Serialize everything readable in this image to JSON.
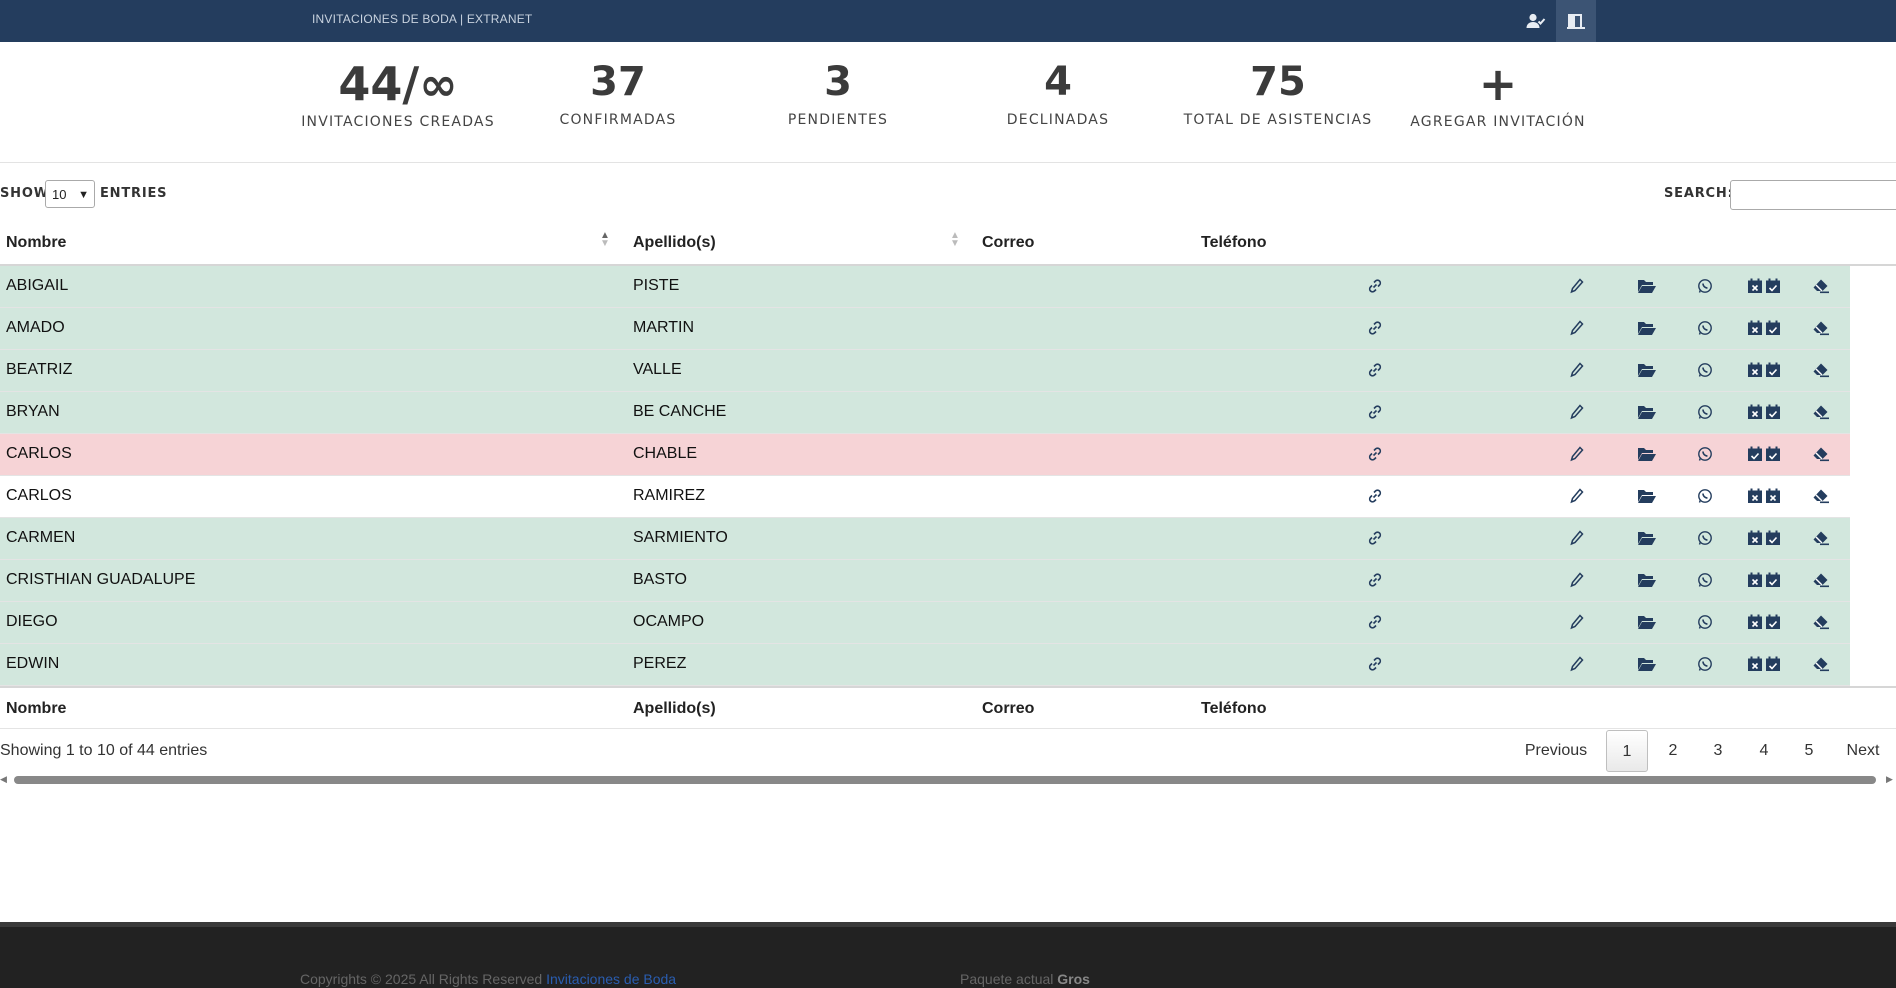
{
  "header": {
    "brand": "INVITACIONES DE BODA | EXTRANET",
    "user_icon": "user-check-icon",
    "exit_icon": "door-exit-icon"
  },
  "stats": [
    {
      "value": "44/∞",
      "label": "INVITACIONES CREADAS"
    },
    {
      "value": "37",
      "label": "CONFIRMADAS"
    },
    {
      "value": "3",
      "label": "PENDIENTES"
    },
    {
      "value": "4",
      "label": "DECLINADAS"
    },
    {
      "value": "75",
      "label": "TOTAL DE ASISTENCIAS"
    },
    {
      "value": "+",
      "label": "AGREGAR INVITACIÓN"
    }
  ],
  "controls": {
    "show": "SHOW",
    "length": "10",
    "entries": "ENTRIES",
    "search_label": "SEARCH:",
    "search_value": ""
  },
  "columns": [
    "Nombre",
    "Apellido(s)",
    "Correo",
    "Teléfono"
  ],
  "rows": [
    {
      "nombre": "ABIGAIL",
      "apellido": "PISTE",
      "correo": "",
      "telefono": "",
      "status": "confirmed"
    },
    {
      "nombre": "AMADO",
      "apellido": "MARTIN",
      "correo": "",
      "telefono": "",
      "status": "confirmed"
    },
    {
      "nombre": "BEATRIZ",
      "apellido": "VALLE",
      "correo": "",
      "telefono": "",
      "status": "confirmed"
    },
    {
      "nombre": "BRYAN",
      "apellido": "BE CANCHE",
      "correo": "",
      "telefono": "",
      "status": "confirmed"
    },
    {
      "nombre": "CARLOS",
      "apellido": "CHABLE",
      "correo": "",
      "telefono": "",
      "status": "declined"
    },
    {
      "nombre": "CARLOS",
      "apellido": "RAMIREZ",
      "correo": "",
      "telefono": "",
      "status": "pending"
    },
    {
      "nombre": "CARMEN",
      "apellido": "SARMIENTO",
      "correo": "",
      "telefono": "",
      "status": "confirmed"
    },
    {
      "nombre": "CRISTHIAN GUADALUPE",
      "apellido": "BASTO",
      "correo": "",
      "telefono": "",
      "status": "confirmed"
    },
    {
      "nombre": "DIEGO",
      "apellido": "OCAMPO",
      "correo": "",
      "telefono": "",
      "status": "confirmed"
    },
    {
      "nombre": "EDWIN",
      "apellido": "PEREZ",
      "correo": "",
      "telefono": "",
      "status": "confirmed"
    }
  ],
  "row_icons": [
    "link-icon",
    "pencil-icon",
    "folder-open-icon",
    "whatsapp-icon",
    "calendar-x-icon",
    "calendar-check-icon",
    "eraser-icon"
  ],
  "info": "Showing 1 to 10 of 44 entries",
  "pagination": {
    "previous": "Previous",
    "pages": [
      "1",
      "2",
      "3",
      "4",
      "5"
    ],
    "current": "1",
    "next": "Next"
  },
  "footer": {
    "copyright": "Copyrights © 2025 All Rights Reserved",
    "copyright_link": "Invitaciones de Boda",
    "package_label": "Paquete actual",
    "package_name": "Gros"
  },
  "colors": {
    "navbar": "#243d5e",
    "confirmed_row": "#d2e7dd",
    "declined_row": "#f6d3d6",
    "footer": "#222222",
    "icon": "#243d5e"
  }
}
